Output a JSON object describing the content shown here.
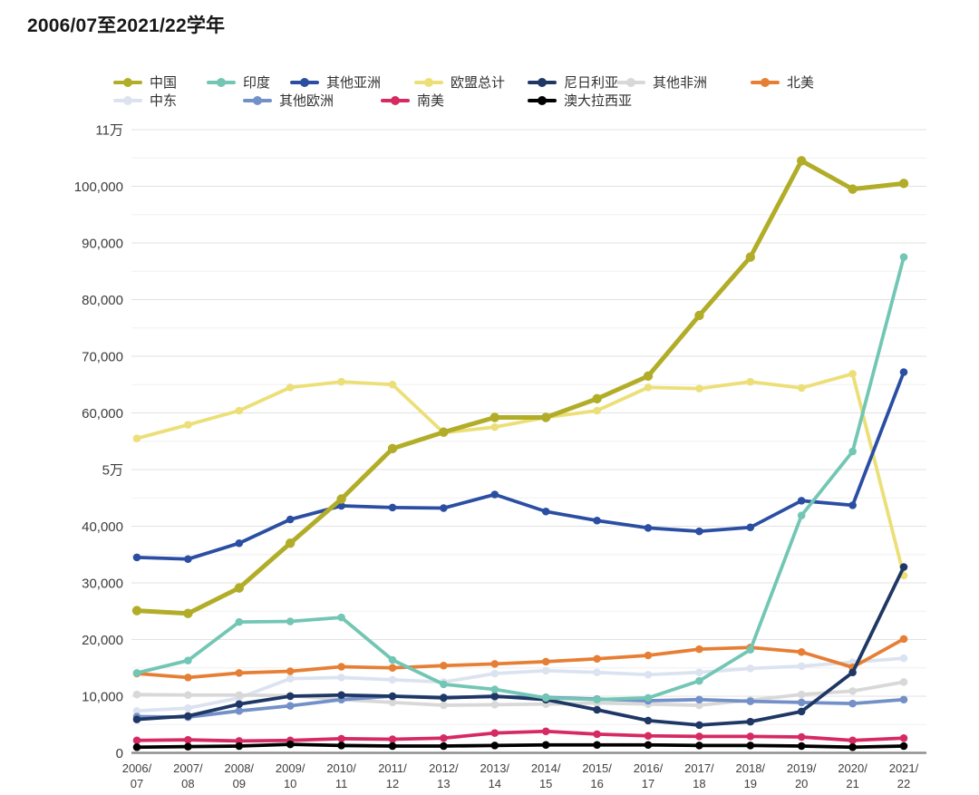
{
  "page": {
    "title": "2006/07至2021/22学年"
  },
  "chart_data": {
    "type": "line",
    "title": "2006/07至2021/22学年",
    "grid": true,
    "legend_position": "top",
    "categories": [
      "2006/07",
      "2007/08",
      "2008/09",
      "2009/10",
      "2010/11",
      "2011/12",
      "2012/13",
      "2013/14",
      "2014/15",
      "2015/16",
      "2016/17",
      "2017/18",
      "2018/19",
      "2019/20",
      "2020/21",
      "2021/22"
    ],
    "y_axis": {
      "min": 0,
      "max": 110000,
      "major_step": 10000,
      "minor_step": 5000,
      "ticks": [
        {
          "value": 110000,
          "label": "11万"
        },
        {
          "value": 100000,
          "label": "100,000"
        },
        {
          "value": 90000,
          "label": "90,000"
        },
        {
          "value": 80000,
          "label": "80,000"
        },
        {
          "value": 70000,
          "label": "70,000"
        },
        {
          "value": 60000,
          "label": "60,000"
        },
        {
          "value": 50000,
          "label": "5万"
        },
        {
          "value": 40000,
          "label": "40,000"
        },
        {
          "value": 30000,
          "label": "30,000"
        },
        {
          "value": 20000,
          "label": "20,000"
        },
        {
          "value": 10000,
          "label": "10,000"
        },
        {
          "value": 0,
          "label": "0"
        }
      ]
    },
    "series": [
      {
        "id": "china",
        "name": "中国",
        "color": "#b1ad28",
        "line_width": 5,
        "marker_radius": 5.2,
        "values": [
          25100,
          24600,
          29100,
          37000,
          44800,
          53700,
          56600,
          59200,
          59200,
          62500,
          66500,
          77200,
          87500,
          104500,
          99500,
          100500
        ]
      },
      {
        "id": "india",
        "name": "印度",
        "color": "#72c6b4",
        "line_width": 3.8,
        "marker_radius": 4.3,
        "values": [
          14100,
          16300,
          23100,
          23200,
          23900,
          16400,
          12100,
          11200,
          9700,
          9400,
          9700,
          12700,
          18200,
          41900,
          53200,
          87500
        ]
      },
      {
        "id": "other-asia",
        "name": "其他亚洲",
        "color": "#2b4ea3",
        "line_width": 3.8,
        "marker_radius": 4.3,
        "values": [
          34500,
          34200,
          37000,
          41200,
          43600,
          43300,
          43200,
          45600,
          42600,
          41000,
          39700,
          39100,
          39800,
          44500,
          43700,
          67200
        ]
      },
      {
        "id": "eu-total",
        "name": "欧盟总计",
        "color": "#ecdf78",
        "line_width": 3.8,
        "marker_radius": 4.3,
        "values": [
          55500,
          57900,
          60400,
          64500,
          65500,
          65000,
          56500,
          57500,
          59200,
          60400,
          64500,
          64300,
          65500,
          64400,
          66900,
          31300
        ]
      },
      {
        "id": "nigeria",
        "name": "尼日利亚",
        "color": "#1e3765",
        "line_width": 3.8,
        "marker_radius": 4.3,
        "values": [
          5900,
          6500,
          8600,
          10000,
          10200,
          10000,
          9700,
          10000,
          9400,
          7600,
          5700,
          4900,
          5500,
          7300,
          14200,
          32800
        ]
      },
      {
        "id": "other-africa",
        "name": "其他非洲",
        "color": "#d8d8d8",
        "line_width": 3.8,
        "marker_radius": 4.3,
        "values": [
          10300,
          10200,
          10200,
          10100,
          9400,
          8900,
          8400,
          8500,
          8600,
          8800,
          8600,
          8400,
          9300,
          10300,
          10900,
          12500
        ]
      },
      {
        "id": "north-america",
        "name": "北美",
        "color": "#e67f35",
        "line_width": 3.8,
        "marker_radius": 4.3,
        "values": [
          14000,
          13300,
          14100,
          14400,
          15200,
          15000,
          15400,
          15700,
          16100,
          16600,
          17200,
          18300,
          18600,
          17800,
          15100,
          20100
        ]
      },
      {
        "id": "middle-east",
        "name": "中东",
        "color": "#dce3f0",
        "line_width": 3.8,
        "marker_radius": 4.3,
        "values": [
          7400,
          7900,
          9700,
          13100,
          13300,
          12900,
          12500,
          14000,
          14500,
          14200,
          13800,
          14200,
          14900,
          15300,
          16000,
          16700
        ]
      },
      {
        "id": "other-europe",
        "name": "其他欧洲",
        "color": "#7390c8",
        "line_width": 3.8,
        "marker_radius": 4.3,
        "values": [
          6400,
          6300,
          7400,
          8300,
          9400,
          10000,
          9800,
          9900,
          9800,
          9500,
          9200,
          9400,
          9100,
          8900,
          8700,
          9400
        ]
      },
      {
        "id": "south-america",
        "name": "南美",
        "color": "#d62a62",
        "line_width": 3.8,
        "marker_radius": 4.3,
        "values": [
          2200,
          2300,
          2100,
          2200,
          2500,
          2400,
          2600,
          3500,
          3800,
          3300,
          3000,
          2900,
          2900,
          2800,
          2200,
          2600
        ]
      },
      {
        "id": "australasia",
        "name": "澳大拉西亚",
        "color": "#000000",
        "line_width": 3.8,
        "marker_radius": 4.3,
        "values": [
          1000,
          1100,
          1200,
          1500,
          1300,
          1200,
          1200,
          1300,
          1400,
          1400,
          1400,
          1300,
          1300,
          1200,
          1000,
          1200
        ]
      }
    ],
    "draw_order": [
      "middle-east",
      "other-africa",
      "other-europe",
      "south-america",
      "australasia",
      "north-america",
      "eu-total",
      "nigeria",
      "other-asia",
      "india",
      "china"
    ]
  }
}
